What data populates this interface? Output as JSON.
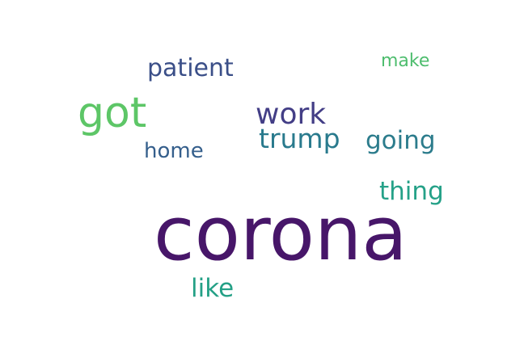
{
  "words": {
    "corona": {
      "text": "corona",
      "color": "#471669"
    },
    "got": {
      "text": "got",
      "color": "#5dc667"
    },
    "work": {
      "text": "work",
      "color": "#433e86"
    },
    "patient": {
      "text": "patient",
      "color": "#3b4f88"
    },
    "trump": {
      "text": "trump",
      "color": "#297a8d"
    },
    "going": {
      "text": "going",
      "color": "#2c7c8c"
    },
    "thing": {
      "text": "thing",
      "color": "#25a188"
    },
    "home": {
      "text": "home",
      "color": "#355f8c"
    },
    "make": {
      "text": "make",
      "color": "#4ebd6e"
    },
    "like": {
      "text": "like",
      "color": "#24a086"
    }
  }
}
